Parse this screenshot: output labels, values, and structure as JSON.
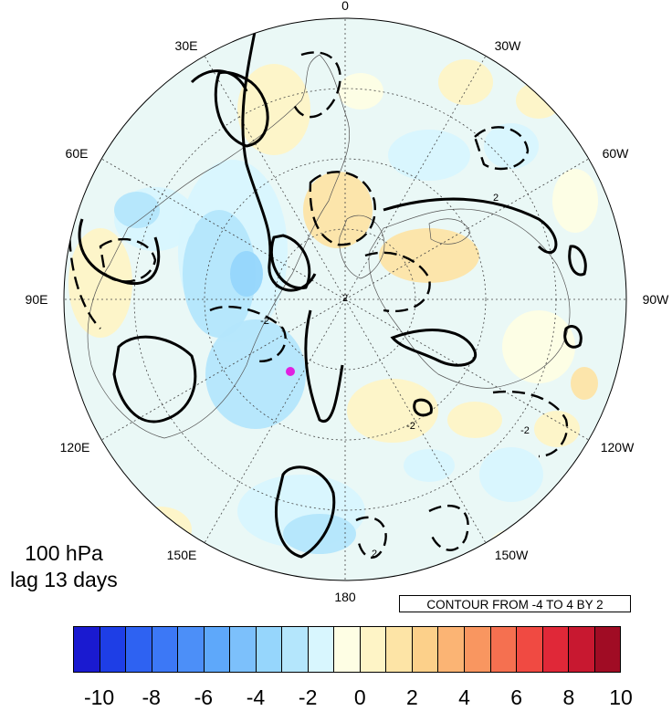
{
  "map": {
    "projection": "north polar stereographic",
    "title_lines": [
      "100 hPa",
      "lag 13 days"
    ],
    "contour_note": "CONTOUR FROM -4 TO 4 BY 2",
    "longitude_labels": [
      "0",
      "30W",
      "60W",
      "90W",
      "120W",
      "150W",
      "180",
      "150E",
      "120E",
      "90E",
      "60E",
      "30E"
    ],
    "contour_value_labels": [
      "2",
      "-2",
      "2",
      "-2",
      "2",
      "-2"
    ],
    "marker": {
      "color": "#e020e0"
    },
    "contour_style": {
      "positive": "solid",
      "negative": "dashed",
      "color": "#000000"
    },
    "grid_style": "dotted"
  },
  "colorbar": {
    "colors": [
      "#1a1ad0",
      "#1e3ee6",
      "#2e62f2",
      "#3c78f6",
      "#4c8ff8",
      "#5ea8fa",
      "#7cc0fb",
      "#96d6fc",
      "#b4e6fc",
      "#d8f6fe",
      "#fefee4",
      "#fef4c6",
      "#fde4a6",
      "#fcd08a",
      "#fbb474",
      "#f99660",
      "#f57050",
      "#f04a42",
      "#e02838",
      "#c81830",
      "#a00c24"
    ],
    "ticks": [
      "-10",
      "-8",
      "-6",
      "-4",
      "-2",
      "0",
      "2",
      "4",
      "6",
      "8",
      "10"
    ]
  }
}
